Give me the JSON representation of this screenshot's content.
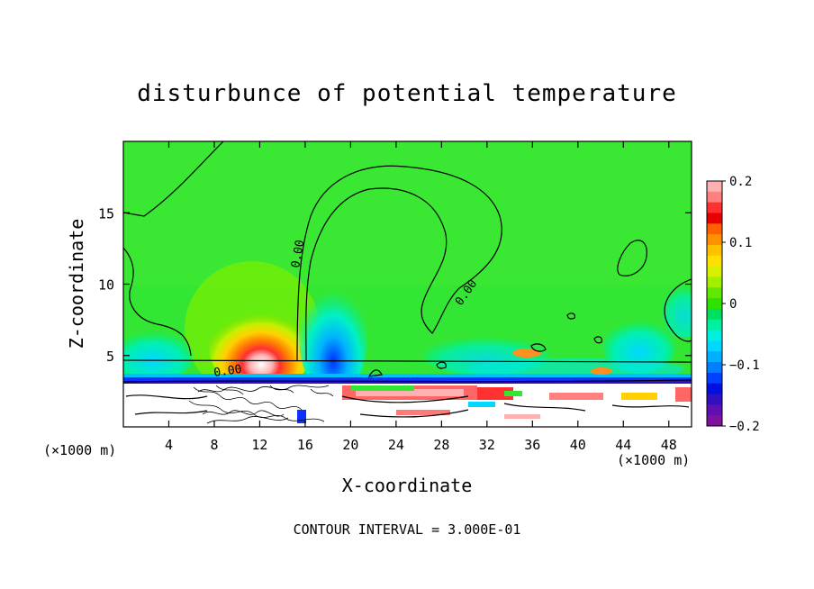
{
  "chart_data": {
    "type": "heatmap",
    "title": "disturbunce of potential temperature",
    "xlabel": "X-coordinate",
    "ylabel": "Z-coordinate",
    "x_unit_left": "(×1000 m)",
    "x_unit_right": "(×1000 m)",
    "xlim": [
      0,
      50
    ],
    "ylim": [
      0,
      20
    ],
    "x_ticks": [
      4,
      8,
      12,
      16,
      20,
      24,
      28,
      32,
      36,
      40,
      44,
      48
    ],
    "y_ticks": [
      5,
      10,
      15
    ],
    "colorbar": {
      "vmin": -0.2,
      "vmax": 0.2,
      "ticks": [
        0.2,
        0.1,
        0,
        -0.1,
        -0.2
      ],
      "tick_labels": [
        "0.2",
        "0.1",
        "0",
        "−0.1",
        "−0.2"
      ]
    },
    "contour_labels": [
      "0.00",
      "0.00",
      "0.00"
    ],
    "footer": "CONTOUR INTERVAL = 3.000E-01"
  }
}
